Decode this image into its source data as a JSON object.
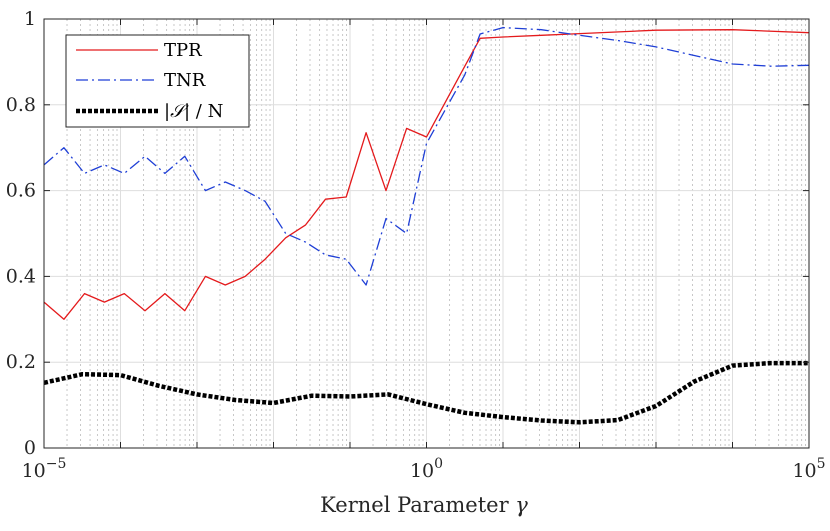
{
  "chart_data": {
    "type": "line",
    "xscale": "log",
    "xlim": [
      -5,
      5
    ],
    "ylim": [
      0,
      1
    ],
    "grid": true,
    "xlabel": "Kernel Parameter γ",
    "ylabel": "",
    "legend_position": "top-left",
    "x_ticks": [
      {
        "value": -5,
        "label": "10",
        "exp": "−5"
      },
      {
        "value": 0,
        "label": "10",
        "exp": "0"
      },
      {
        "value": 5,
        "label": "10",
        "exp": "5"
      }
    ],
    "y_ticks": [
      {
        "value": 0,
        "label": "0"
      },
      {
        "value": 0.2,
        "label": "0.2"
      },
      {
        "value": 0.4,
        "label": "0.4"
      },
      {
        "value": 0.6,
        "label": "0.6"
      },
      {
        "value": 0.8,
        "label": "0.8"
      },
      {
        "value": 1,
        "label": "1"
      }
    ],
    "series": [
      {
        "name": "TPR",
        "color": "#e41a1c",
        "dash": "solid",
        "width": 1.3,
        "log10x": [
          -5,
          -4.74,
          -4.47,
          -4.21,
          -3.95,
          -3.68,
          -3.42,
          -3.16,
          -2.89,
          -2.63,
          -2.37,
          -2.11,
          -1.84,
          -1.58,
          -1.32,
          -1.05,
          -0.79,
          -0.53,
          -0.26,
          0,
          0.5,
          0.7,
          1,
          1.5,
          2,
          3,
          4,
          5
        ],
        "values": [
          0.34,
          0.3,
          0.36,
          0.34,
          0.36,
          0.32,
          0.36,
          0.32,
          0.4,
          0.38,
          0.4,
          0.44,
          0.49,
          0.52,
          0.58,
          0.585,
          0.735,
          0.6,
          0.745,
          0.725,
          0.89,
          0.955,
          0.958,
          0.962,
          0.966,
          0.974,
          0.975,
          0.968
        ]
      },
      {
        "name": "TNR",
        "color": "#1f3fd6",
        "dash": "dashdot",
        "width": 1.3,
        "log10x": [
          -5,
          -4.74,
          -4.47,
          -4.21,
          -3.95,
          -3.68,
          -3.42,
          -3.16,
          -2.89,
          -2.63,
          -2.37,
          -2.11,
          -1.84,
          -1.58,
          -1.32,
          -1.05,
          -0.79,
          -0.53,
          -0.26,
          0,
          0.5,
          0.7,
          1,
          1.5,
          2,
          2.5,
          3,
          3.5,
          4,
          4.5,
          5
        ],
        "values": [
          0.66,
          0.7,
          0.64,
          0.66,
          0.64,
          0.68,
          0.64,
          0.68,
          0.6,
          0.62,
          0.6,
          0.575,
          0.5,
          0.48,
          0.45,
          0.44,
          0.38,
          0.535,
          0.5,
          0.71,
          0.87,
          0.965,
          0.98,
          0.975,
          0.962,
          0.95,
          0.935,
          0.915,
          0.895,
          0.89,
          0.892
        ]
      },
      {
        "name": "|S| / N",
        "color": "#000000",
        "dash": "dotted",
        "width": 4.5,
        "log10x": [
          -5,
          -4.5,
          -4,
          -3.5,
          -3,
          -2.5,
          -2,
          -1.5,
          -1,
          -0.5,
          0,
          0.5,
          1,
          1.5,
          2,
          2.5,
          3,
          3.5,
          4,
          4.5,
          5
        ],
        "values": [
          0.152,
          0.172,
          0.17,
          0.145,
          0.125,
          0.112,
          0.105,
          0.122,
          0.12,
          0.125,
          0.102,
          0.082,
          0.072,
          0.064,
          0.06,
          0.065,
          0.098,
          0.155,
          0.192,
          0.198,
          0.198
        ]
      }
    ]
  },
  "legend": {
    "entries": [
      {
        "label": "TPR"
      },
      {
        "label": "TNR"
      },
      {
        "label_pre": "|",
        "label_sym": "𝒮",
        "label_post": "| / N"
      }
    ]
  },
  "axis_text": {
    "xlabel_text": "Kernel Parameter ",
    "xlabel_symbol": "γ"
  }
}
